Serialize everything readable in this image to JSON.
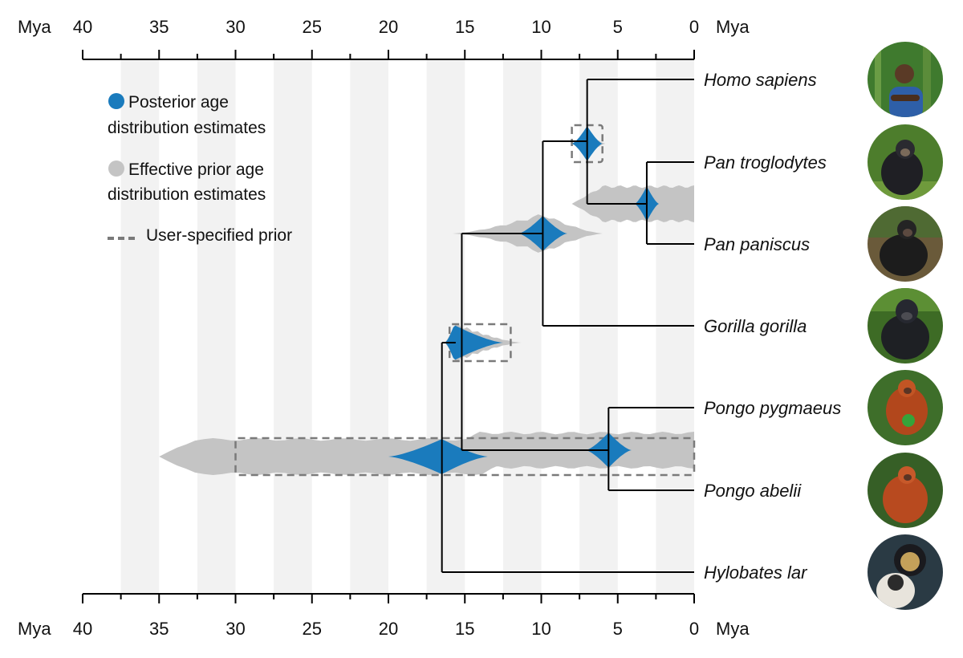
{
  "chart_data": {
    "type": "time-calibrated phylogeny",
    "axis": {
      "unit_label": "Mya",
      "domain": [
        40,
        0
      ],
      "major_ticks": [
        40,
        35,
        30,
        25,
        20,
        15,
        10,
        5,
        0
      ],
      "minor_ticks": [
        37.5,
        32.5,
        27.5,
        22.5,
        17.5,
        12.5,
        7.5,
        2.5
      ],
      "shaded_bands": [
        [
          37.5,
          35
        ],
        [
          32.5,
          30
        ],
        [
          27.5,
          25
        ],
        [
          22.5,
          20
        ],
        [
          17.5,
          15
        ],
        [
          12.5,
          10
        ],
        [
          7.5,
          5
        ],
        [
          2.5,
          0
        ]
      ]
    },
    "taxa": [
      {
        "name": "Homo sapiens",
        "photo": "human-photo"
      },
      {
        "name": "Pan troglodytes",
        "photo": "chimpanzee-photo"
      },
      {
        "name": "Pan paniscus",
        "photo": "bonobo-photo"
      },
      {
        "name": "Gorilla gorilla",
        "photo": "gorilla-photo"
      },
      {
        "name": "Pongo pygmaeus",
        "photo": "bornean-orangutan-photo"
      },
      {
        "name": "Pongo abelii",
        "photo": "sumatran-orangutan-photo"
      },
      {
        "name": "Hylobates lar",
        "photo": "gibbon-photo"
      }
    ],
    "nodes": [
      {
        "id": "pan",
        "age": 3.1,
        "children": [
          "Pan troglodytes",
          "Pan paniscus"
        ],
        "posterior": {
          "lo": 2.3,
          "hi": 3.9,
          "peak": 3.1
        },
        "prior": {
          "lo": 0,
          "hi": 8.0
        }
      },
      {
        "id": "hominini",
        "age": 7.0,
        "children": [
          "Homo sapiens",
          "pan"
        ],
        "posterior": {
          "lo": 6.0,
          "hi": 8.0,
          "peak": 7.0
        },
        "prior": {
          "lo": 5.8,
          "hi": 8.1
        },
        "user_prior": [
          6.0,
          8.0
        ]
      },
      {
        "id": "homininae",
        "age": 9.9,
        "children": [
          "hominini",
          "Gorilla gorilla"
        ],
        "posterior": {
          "lo": 8.3,
          "hi": 11.5,
          "peak": 9.9
        },
        "prior": {
          "lo": 6.0,
          "hi": 15.8
        }
      },
      {
        "id": "pongo",
        "age": 5.6,
        "children": [
          "Pongo pygmaeus",
          "Pongo abelii"
        ],
        "posterior": {
          "lo": 4.1,
          "hi": 7.1,
          "peak": 5.6
        },
        "prior": {
          "lo": 0,
          "hi": 16.5
        }
      },
      {
        "id": "hominidae",
        "age": 15.2,
        "children": [
          "homininae",
          "pongo"
        ],
        "posterior": {
          "lo": 12.5,
          "hi": 16.3,
          "peak": 15.7
        },
        "prior": {
          "lo": 11.3,
          "hi": 16.3
        },
        "user_prior": [
          12.0,
          16.0
        ]
      },
      {
        "id": "hominoidea",
        "age": 16.5,
        "children": [
          "hominidae",
          "Hylobates lar"
        ],
        "posterior": {
          "lo": 13.5,
          "hi": 20.0,
          "peak": 16.5
        },
        "prior": {
          "lo": 11.5,
          "hi": 35.0
        },
        "user_prior": [
          0,
          30.0
        ]
      }
    ],
    "legend": {
      "posterior_line1": "Posterior age",
      "posterior_line2": "distribution estimates",
      "prior_line1": "Effective prior age",
      "prior_line2": "distribution estimates",
      "user_prior": "User-specified prior"
    },
    "colors": {
      "posterior": "#1a7bbd",
      "prior": "#c4c4c4",
      "band": "#f2f2f2",
      "user_prior": "#7a7a7a",
      "tree": "#000000"
    }
  }
}
